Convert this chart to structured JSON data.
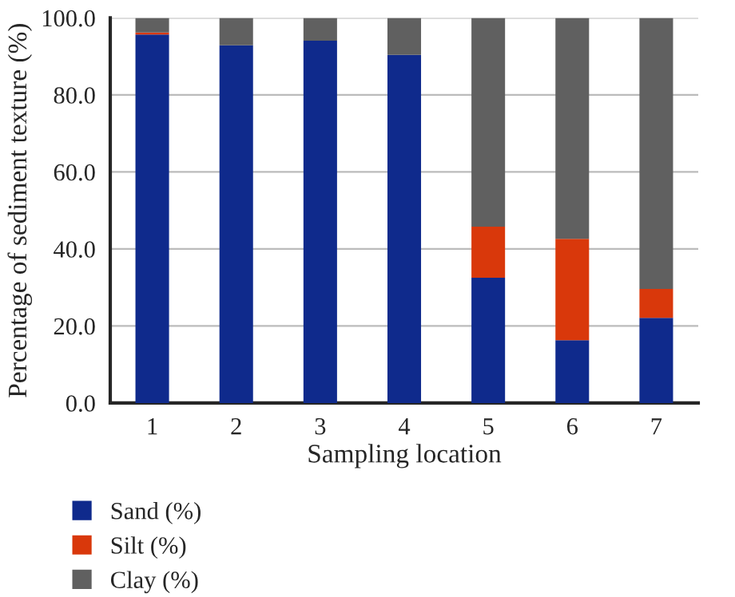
{
  "chart_data": {
    "type": "bar",
    "stacked": true,
    "xlabel": "Sampling location",
    "ylabel": "Percentage of sediment texture (%)",
    "categories": [
      "1",
      "2",
      "3",
      "4",
      "5",
      "6",
      "7"
    ],
    "series": [
      {
        "name": "Sand (%)",
        "color": "#0f2a8c",
        "values": [
          95.7,
          92.9,
          94.1,
          90.4,
          32.5,
          16.3,
          22.1
        ]
      },
      {
        "name": "Silt (%)",
        "color": "#d9380b",
        "values": [
          0.5,
          0,
          0,
          0,
          13.3,
          26.3,
          7.5
        ]
      },
      {
        "name": "Clay (%)",
        "color": "#606060",
        "values": [
          3.8,
          7.1,
          5.9,
          9.6,
          54.2,
          57.4,
          70.4
        ]
      }
    ],
    "ylim": [
      0,
      100
    ],
    "yticks": [
      {
        "value": 0,
        "label": "0.0"
      },
      {
        "value": 20,
        "label": "20.0"
      },
      {
        "value": 40,
        "label": "40.0"
      },
      {
        "value": 60,
        "label": "60.0"
      },
      {
        "value": 80,
        "label": "80.0"
      },
      {
        "value": 100,
        "label": "100.0"
      }
    ],
    "grid": "y",
    "legend": "bottom left"
  }
}
